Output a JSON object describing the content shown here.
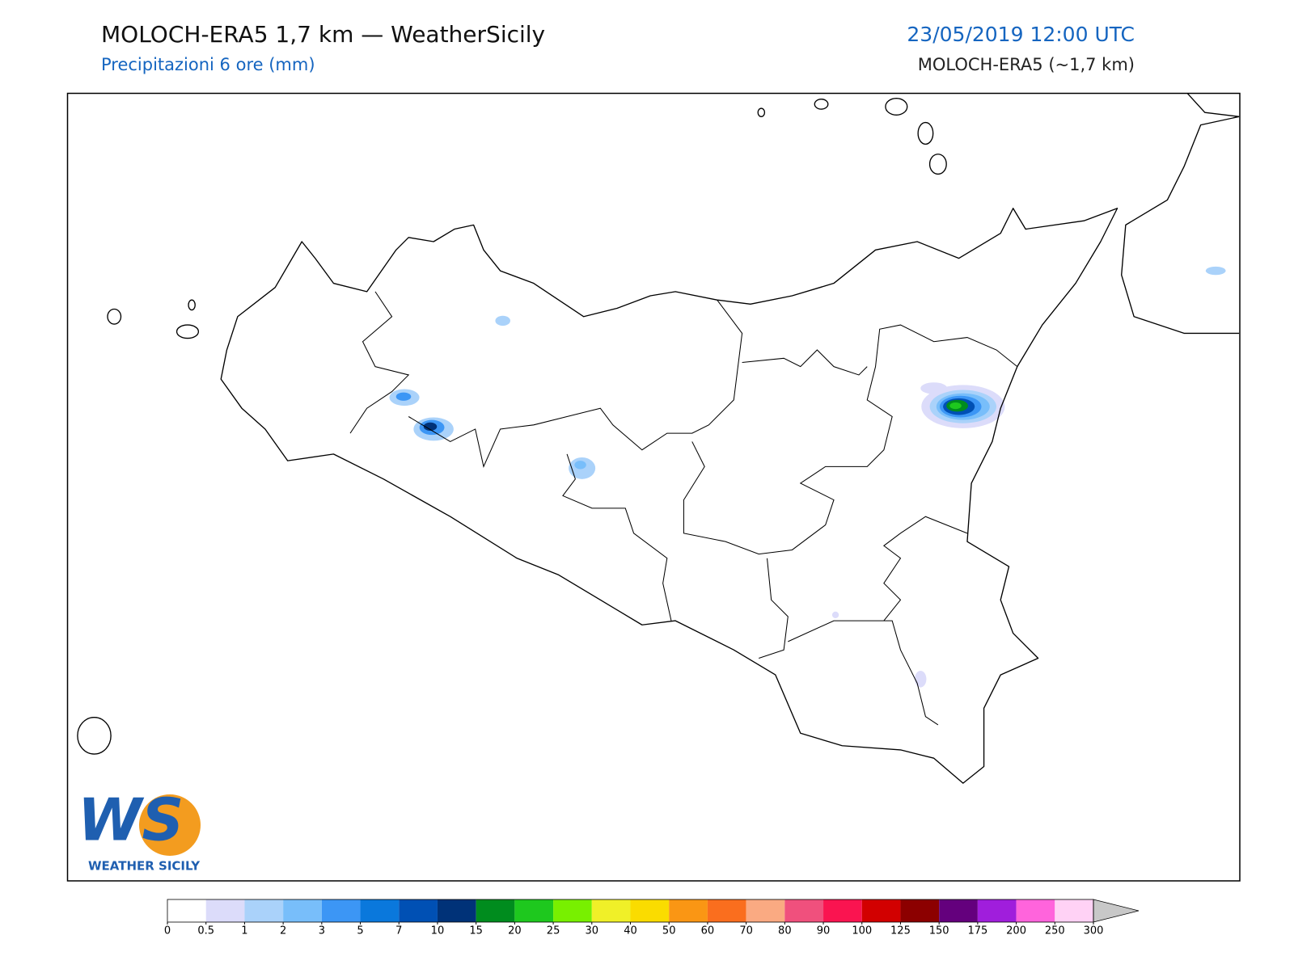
{
  "header": {
    "title": "MOLOCH-ERA5 1,7 km — WeatherSicily",
    "subtitle": "Precipitazioni 6 ore (mm)",
    "datetime": "23/05/2019 12:00 UTC",
    "model": "MOLOCH-ERA5 (~1,7 km)"
  },
  "logo": {
    "mark": "WS",
    "text": "WEATHER SICILY"
  },
  "colorbar": {
    "ticks": [
      0,
      0.5,
      1,
      2,
      3,
      5,
      7,
      10,
      15,
      20,
      25,
      30,
      40,
      50,
      60,
      70,
      80,
      90,
      100,
      125,
      150,
      175,
      200,
      250,
      300
    ],
    "colors": [
      "#ffffff",
      "#dcdcfa",
      "#aad2fa",
      "#78befa",
      "#3c96f5",
      "#0a78dc",
      "#0050b4",
      "#003278",
      "#008c1e",
      "#1ec81e",
      "#78f000",
      "#f0f028",
      "#fadc00",
      "#fa9614",
      "#fa6e1e",
      "#faaa82",
      "#f0507d",
      "#fa1450",
      "#d20000",
      "#8c0000",
      "#64007d",
      "#a01edc",
      "#ff64dc",
      "#ffd2f5"
    ],
    "extend_color": "#c8c8c8"
  }
}
